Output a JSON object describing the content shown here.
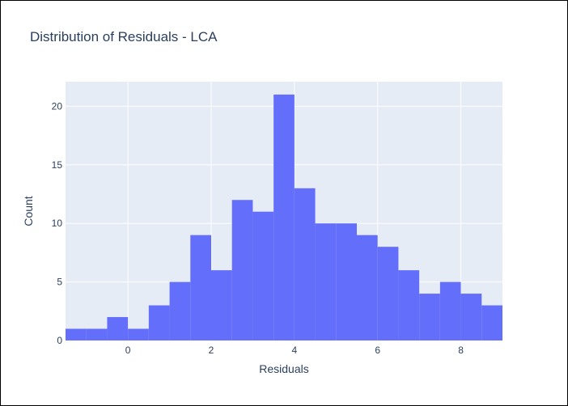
{
  "chart_data": {
    "type": "bar",
    "title": "Distribution of Residuals - LCA",
    "xlabel": "Residuals",
    "ylabel": "Count",
    "bin_width": 0.5,
    "bin_starts": [
      -1.5,
      -1.0,
      -0.5,
      0.0,
      0.5,
      1.0,
      1.5,
      2.0,
      2.5,
      3.0,
      3.5,
      4.0,
      4.5,
      5.0,
      5.5,
      6.0,
      6.5,
      7.0,
      7.5,
      8.0,
      8.5
    ],
    "values": [
      1,
      1,
      2,
      1,
      3,
      5,
      9,
      6,
      12,
      11,
      21,
      13,
      10,
      10,
      9,
      8,
      6,
      4,
      5,
      4,
      3
    ],
    "xlim": [
      -1.5,
      9.0
    ],
    "ylim": [
      0,
      22.1
    ],
    "xticks": [
      0,
      2,
      4,
      6,
      8
    ],
    "yticks": [
      0,
      5,
      10,
      15,
      20
    ],
    "grid": true,
    "colors": {
      "bar": "#636efa",
      "plot_bg": "#e5ecf6",
      "grid": "#ffffff",
      "text": "#2a3f5f"
    }
  }
}
